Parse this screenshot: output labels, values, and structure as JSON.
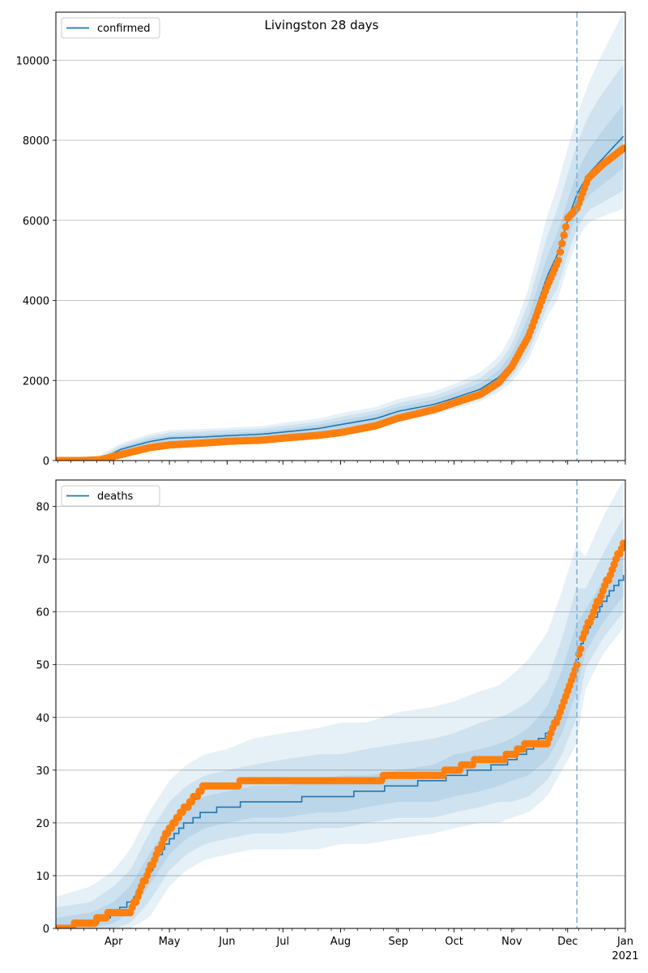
{
  "chart_data": [
    {
      "type": "line",
      "title": "Livingston 28 days",
      "legend": {
        "entries": [
          "confirmed"
        ],
        "placement": "top-left"
      },
      "series_name": "confirmed",
      "ylim": [
        0,
        11200
      ],
      "yticks": [
        0,
        2000,
        4000,
        6000,
        8000,
        10000
      ],
      "grid": "y",
      "vline_date": "2020-12-06",
      "x": [
        "2020-03-01",
        "2020-03-15",
        "2020-03-25",
        "2020-04-05",
        "2020-04-20",
        "2020-05-01",
        "2020-05-20",
        "2020-06-01",
        "2020-06-20",
        "2020-07-01",
        "2020-07-20",
        "2020-08-01",
        "2020-08-20",
        "2020-09-01",
        "2020-09-20",
        "2020-10-01",
        "2020-10-15",
        "2020-10-25",
        "2020-11-01",
        "2020-11-10",
        "2020-11-20",
        "2020-11-26",
        "2020-12-01",
        "2020-12-06",
        "2020-12-12",
        "2020-12-20",
        "2020-12-31"
      ],
      "observed": [
        0,
        0,
        20,
        150,
        320,
        390,
        440,
        480,
        510,
        560,
        630,
        700,
        870,
        1060,
        1270,
        1440,
        1650,
        1950,
        2350,
        3100,
        4350,
        5000,
        6050,
        6300,
        7050,
        7400,
        7800
      ],
      "model": [
        0,
        0,
        30,
        280,
        470,
        560,
        590,
        620,
        660,
        710,
        800,
        900,
        1050,
        1230,
        1400,
        1560,
        1780,
        2080,
        2450,
        3250,
        4600,
        5200,
        6000,
        6650,
        7150,
        7550,
        8100
      ],
      "bands": [
        {
          "lower": [
            0,
            0,
            0,
            230,
            400,
            490,
            520,
            550,
            590,
            630,
            710,
            800,
            940,
            1120,
            1290,
            1440,
            1640,
            1920,
            2250,
            2950,
            4150,
            4700,
            5550,
            6150,
            6600,
            6900,
            7300
          ],
          "upper": [
            10,
            10,
            60,
            330,
            540,
            630,
            660,
            690,
            730,
            790,
            890,
            1000,
            1160,
            1340,
            1520,
            1690,
            1930,
            2250,
            2680,
            3600,
            5100,
            5750,
            6500,
            7200,
            7750,
            8250,
            8900
          ]
        },
        {
          "lower": [
            0,
            0,
            0,
            200,
            360,
            450,
            480,
            510,
            540,
            590,
            660,
            740,
            880,
            1050,
            1210,
            1360,
            1550,
            1800,
            2080,
            2700,
            3850,
            4350,
            5150,
            5800,
            6250,
            6450,
            6750
          ],
          "upper": [
            30,
            30,
            100,
            380,
            600,
            700,
            730,
            760,
            800,
            870,
            970,
            1090,
            1250,
            1440,
            1620,
            1800,
            2060,
            2420,
            2900,
            3950,
            5600,
            6350,
            7150,
            7900,
            8600,
            9200,
            9900
          ]
        },
        {
          "lower": [
            0,
            0,
            0,
            170,
            320,
            410,
            440,
            470,
            500,
            550,
            620,
            690,
            820,
            980,
            1140,
            1290,
            1470,
            1710,
            1960,
            2520,
            3600,
            4050,
            4850,
            5500,
            5950,
            6100,
            6300
          ],
          "upper": [
            50,
            50,
            140,
            430,
            660,
            760,
            790,
            820,
            860,
            940,
            1050,
            1180,
            1340,
            1540,
            1720,
            1910,
            2200,
            2600,
            3150,
            4300,
            6100,
            6950,
            7800,
            8600,
            9400,
            10200,
            11200
          ]
        }
      ]
    },
    {
      "type": "line",
      "legend": {
        "entries": [
          "deaths"
        ],
        "placement": "top-left"
      },
      "series_name": "deaths",
      "ylim": [
        0,
        85
      ],
      "yticks": [
        0,
        10,
        20,
        30,
        40,
        50,
        60,
        70,
        80
      ],
      "grid": "y",
      "vline_date": "2020-12-06",
      "x": [
        "2020-03-01",
        "2020-03-20",
        "2020-04-01",
        "2020-04-10",
        "2020-04-20",
        "2020-05-01",
        "2020-05-10",
        "2020-05-20",
        "2020-06-01",
        "2020-06-15",
        "2020-07-01",
        "2020-07-20",
        "2020-08-01",
        "2020-08-15",
        "2020-09-01",
        "2020-09-20",
        "2020-10-01",
        "2020-10-15",
        "2020-10-25",
        "2020-11-01",
        "2020-11-10",
        "2020-11-20",
        "2020-11-28",
        "2020-12-06",
        "2020-12-10",
        "2020-12-20",
        "2020-12-31"
      ],
      "observed": [
        0,
        1,
        3,
        3,
        11,
        19,
        23,
        27,
        27,
        28,
        28,
        28,
        28,
        28,
        29,
        29,
        30,
        32,
        32,
        33,
        35,
        35,
        42,
        50,
        56,
        64,
        73
      ],
      "model": [
        0,
        1,
        3,
        5,
        11,
        17,
        20,
        22,
        23,
        24,
        24,
        25,
        25,
        26,
        27,
        28,
        29,
        30,
        31,
        32,
        34,
        37,
        43,
        51,
        56,
        62,
        67
      ],
      "bands": [
        {
          "lower": [
            0,
            0,
            1,
            3,
            8,
            14,
            17,
            19,
            20,
            21,
            21,
            22,
            22,
            23,
            24,
            24,
            25,
            26,
            27,
            28,
            29,
            32,
            37,
            45,
            52,
            58,
            63
          ],
          "upper": [
            2,
            3,
            5,
            8,
            14,
            20,
            23,
            25,
            26,
            27,
            27,
            28,
            29,
            29,
            30,
            31,
            33,
            34,
            35,
            36,
            38,
            42,
            49,
            58,
            60,
            66,
            72
          ]
        },
        {
          "lower": [
            0,
            0,
            0,
            1,
            5,
            11,
            14,
            16,
            17,
            18,
            18,
            19,
            19,
            20,
            21,
            21,
            22,
            23,
            24,
            24,
            25,
            28,
            33,
            40,
            49,
            55,
            60
          ],
          "upper": [
            4,
            5,
            8,
            11,
            18,
            24,
            27,
            29,
            30,
            31,
            32,
            33,
            33,
            34,
            35,
            36,
            37,
            39,
            40,
            41,
            43,
            47,
            55,
            65,
            64,
            71,
            78
          ]
        },
        {
          "lower": [
            0,
            0,
            0,
            0,
            2,
            8,
            11,
            13,
            14,
            15,
            15,
            15,
            16,
            16,
            17,
            18,
            19,
            20,
            20,
            21,
            22,
            25,
            30,
            35,
            45,
            52,
            57
          ],
          "upper": [
            6,
            8,
            11,
            15,
            22,
            28,
            31,
            33,
            34,
            36,
            37,
            38,
            39,
            39,
            41,
            42,
            43,
            45,
            46,
            48,
            51,
            56,
            64,
            73,
            70,
            78,
            85
          ]
        }
      ]
    }
  ],
  "x_axis": {
    "month_labels": [
      {
        "date": "2020-04-01",
        "label": "Apr"
      },
      {
        "date": "2020-05-01",
        "label": "May"
      },
      {
        "date": "2020-06-01",
        "label": "Jun"
      },
      {
        "date": "2020-07-01",
        "label": "Jul"
      },
      {
        "date": "2020-08-01",
        "label": "Aug"
      },
      {
        "date": "2020-09-01",
        "label": "Sep"
      },
      {
        "date": "2020-10-01",
        "label": "Oct"
      },
      {
        "date": "2020-11-01",
        "label": "Nov"
      },
      {
        "date": "2020-12-01",
        "label": "Dec"
      },
      {
        "date": "2021-01-01",
        "label": "Jan"
      }
    ],
    "year_label": "2021"
  },
  "colors": {
    "model": "#1f77b4",
    "observed": "#ff7f0e",
    "band": "#1f77b4",
    "grid": "#b0b0b0",
    "vline": "#7fb2d9"
  }
}
